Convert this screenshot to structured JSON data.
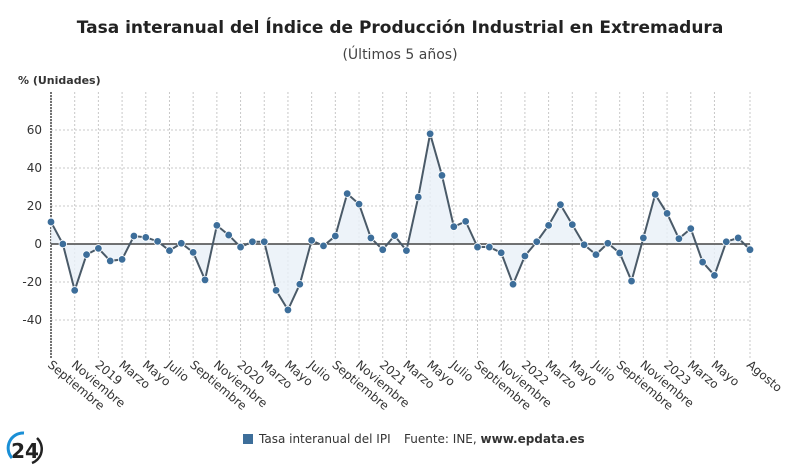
{
  "chart_data": {
    "type": "line",
    "title": "Tasa interanual del Índice de Producción Industrial en Extremadura",
    "subtitle": "(Últimos 5 años)",
    "ylabel": "% (Unidades)",
    "xlabel": "",
    "ylim": [
      -60,
      80
    ],
    "yticks": [
      -40,
      -20,
      0,
      20,
      40,
      60
    ],
    "grid": true,
    "legend_position": "bottom",
    "x_tick_labels": [
      "Septiembre",
      "Noviembre",
      "2019",
      "Marzo",
      "Mayo",
      "Julio",
      "Septiembre",
      "Noviembre",
      "2020",
      "Marzo",
      "Mayo",
      "Julio",
      "Septiembre",
      "Noviembre",
      "2021",
      "Marzo",
      "Mayo",
      "Julio",
      "Septiembre",
      "Noviembre",
      "2022",
      "Marzo",
      "Mayo",
      "Julio",
      "Septiembre",
      "Noviembre",
      "2023",
      "Marzo",
      "Mayo",
      "Agosto"
    ],
    "x_tick_indices": [
      0,
      2,
      4,
      6,
      8,
      10,
      12,
      14,
      16,
      18,
      20,
      22,
      24,
      26,
      28,
      30,
      32,
      34,
      36,
      38,
      40,
      42,
      44,
      46,
      48,
      50,
      52,
      54,
      56,
      59
    ],
    "x_range": "Septiembre 2018 – Agosto 2023 (mensual)",
    "series": [
      {
        "name": "Tasa interanual del IPI",
        "color": "#3d6e9a",
        "values": [
          11.6,
          0,
          -24.4,
          -5.6,
          -2.3,
          -8.9,
          -8.1,
          4.2,
          3.5,
          1.4,
          -3.5,
          0.4,
          -4.4,
          -18.9,
          9.8,
          4.7,
          -1.6,
          1.2,
          1.2,
          -24.4,
          -34.7,
          -21.2,
          1.9,
          -1,
          4.2,
          26.5,
          21,
          3.2,
          -3,
          4.4,
          -3.5,
          24.7,
          58,
          36.1,
          9.1,
          11.9,
          -1.6,
          -1.6,
          -4.6,
          -21.2,
          -6.3,
          1.2,
          9.8,
          20.7,
          10.2,
          -0.4,
          -5.6,
          0.4,
          -4.7,
          -19.5,
          3.2,
          26.1,
          16.1,
          2.8,
          8.1,
          -9.5,
          -16.5,
          1.2,
          3.2,
          -3
        ]
      }
    ]
  },
  "legend": {
    "label": "Tasa interanual del IPI"
  },
  "source": {
    "prefix": "Fuente: INE, ",
    "site": "www.epdata.es"
  },
  "logo": {
    "text": "24",
    "accent": "#1a8fd6"
  }
}
